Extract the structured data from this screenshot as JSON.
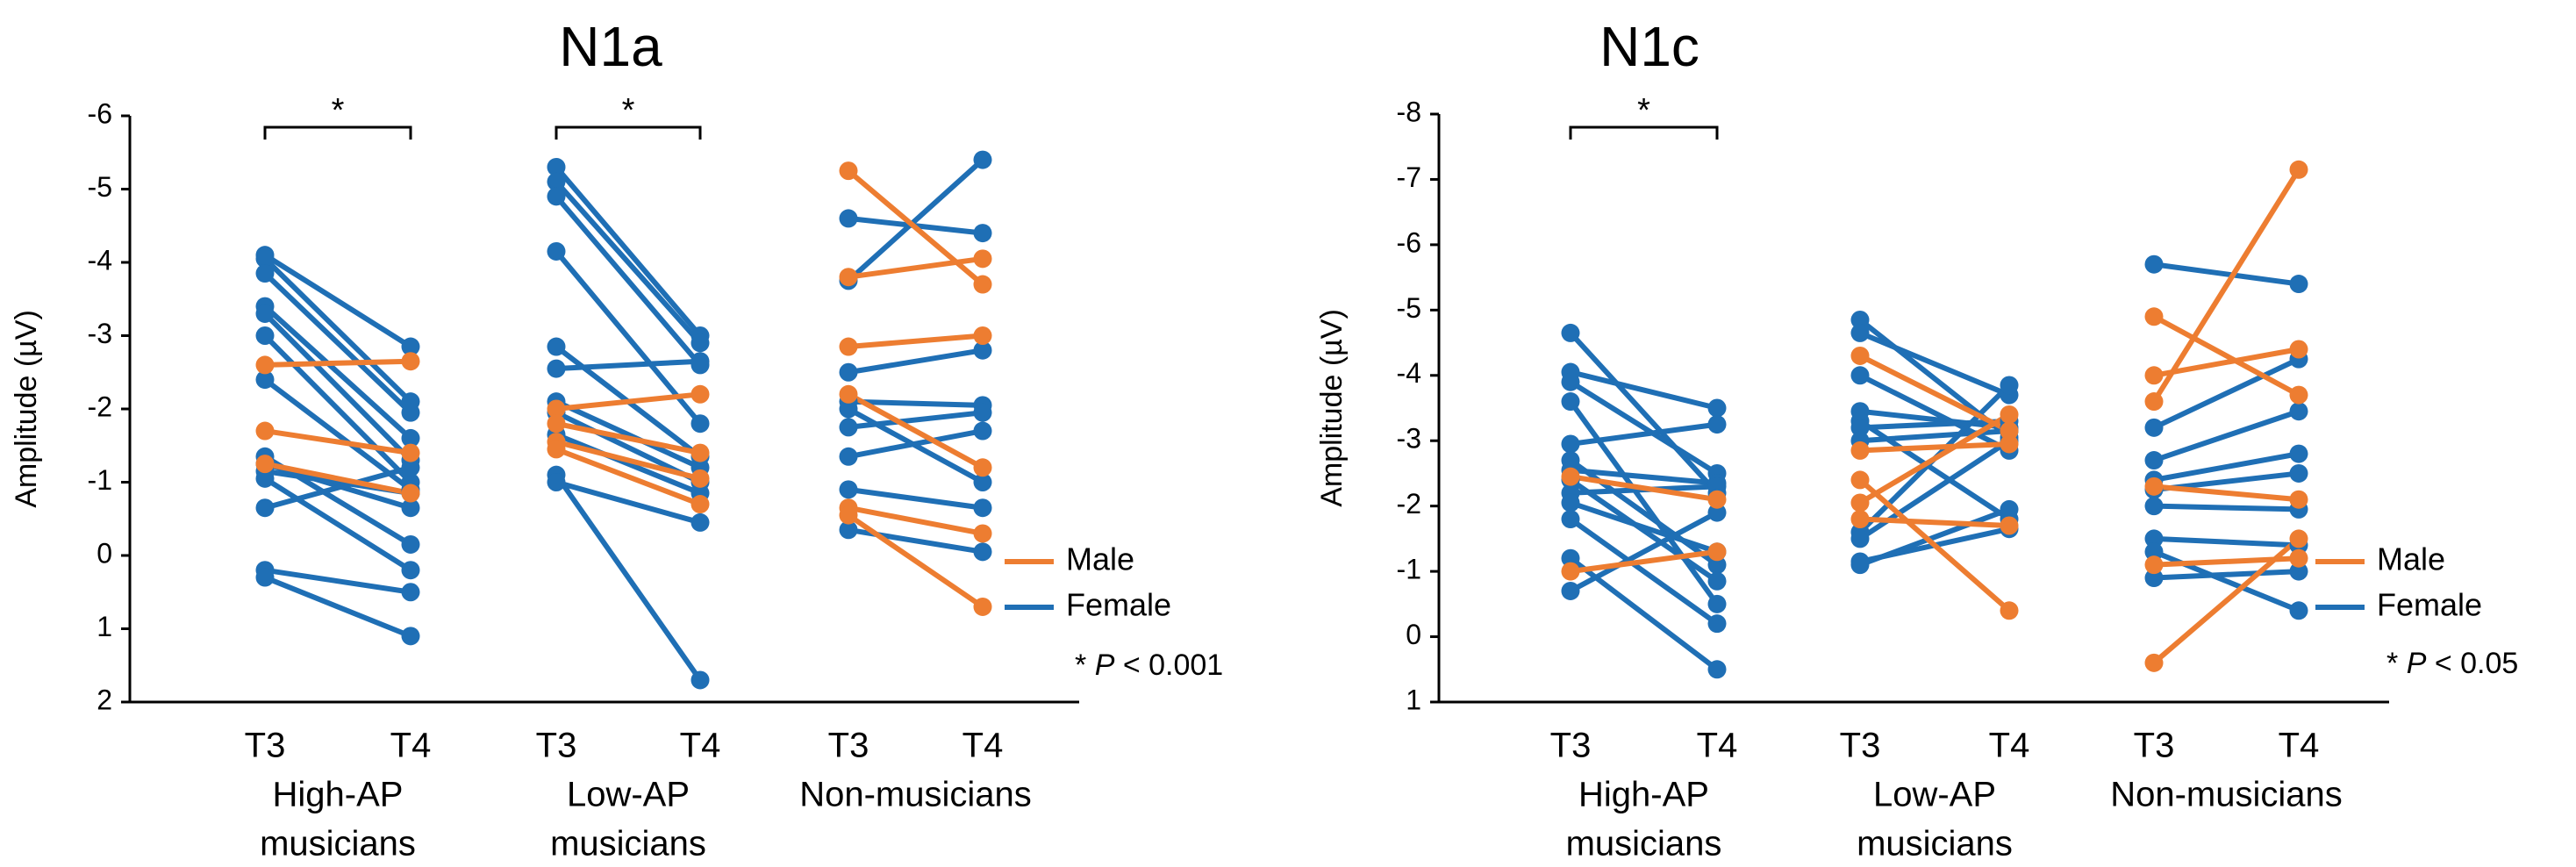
{
  "colors": {
    "male": "#ED7D31",
    "female": "#1F6FB5",
    "axis": "#000000"
  },
  "chart_data": [
    {
      "type": "line",
      "title": "N1a",
      "ylabel": "Amplitude (µV)",
      "ylim": [
        2,
        -6
      ],
      "yticks": [
        "-6",
        "-5",
        "-4",
        "-3",
        "-2",
        "-1",
        "0",
        "1",
        "2"
      ],
      "timepoints": [
        "T3",
        "T4"
      ],
      "groups": [
        {
          "name_line1": "High-AP",
          "name_line2": "musicians",
          "pairs": [
            {
              "sex": "female",
              "T3": -4.1,
              "T4": -2.85
            },
            {
              "sex": "female",
              "T3": -4.05,
              "T4": -2.1
            },
            {
              "sex": "female",
              "T3": -3.85,
              "T4": -1.95
            },
            {
              "sex": "female",
              "T3": -3.4,
              "T4": -1.6
            },
            {
              "sex": "female",
              "T3": -3.3,
              "T4": -1.3
            },
            {
              "sex": "female",
              "T3": -3.0,
              "T4": -1.0
            },
            {
              "sex": "female",
              "T3": -2.4,
              "T4": -0.9
            },
            {
              "sex": "female",
              "T3": -1.35,
              "T4": -0.15
            },
            {
              "sex": "female",
              "T3": -1.25,
              "T4": -0.65
            },
            {
              "sex": "female",
              "T3": -1.15,
              "T4": -0.85
            },
            {
              "sex": "female",
              "T3": -1.05,
              "T4": 0.2
            },
            {
              "sex": "female",
              "T3": -0.65,
              "T4": -1.2
            },
            {
              "sex": "female",
              "T3": 0.2,
              "T4": 0.5
            },
            {
              "sex": "female",
              "T3": 0.3,
              "T4": 1.1
            },
            {
              "sex": "male",
              "T3": -2.6,
              "T4": -2.65
            },
            {
              "sex": "male",
              "T3": -1.7,
              "T4": -1.4
            },
            {
              "sex": "male",
              "T3": -1.25,
              "T4": -0.85
            }
          ]
        },
        {
          "name_line1": "Low-AP",
          "name_line2": "musicians",
          "pairs": [
            {
              "sex": "female",
              "T3": -5.3,
              "T4": -3.0
            },
            {
              "sex": "female",
              "T3": -5.1,
              "T4": -2.9
            },
            {
              "sex": "female",
              "T3": -4.9,
              "T4": -2.6
            },
            {
              "sex": "female",
              "T3": -4.15,
              "T4": -1.8
            },
            {
              "sex": "female",
              "T3": -2.85,
              "T4": -1.35
            },
            {
              "sex": "female",
              "T3": -2.55,
              "T4": -2.65
            },
            {
              "sex": "female",
              "T3": -2.1,
              "T4": -1.2
            },
            {
              "sex": "female",
              "T3": -1.95,
              "T4": -1.0
            },
            {
              "sex": "female",
              "T3": -1.65,
              "T4": -0.85
            },
            {
              "sex": "female",
              "T3": -1.1,
              "T4": 1.7
            },
            {
              "sex": "female",
              "T3": -1.0,
              "T4": -0.45
            },
            {
              "sex": "male",
              "T3": -2.0,
              "T4": -2.2
            },
            {
              "sex": "male",
              "T3": -1.8,
              "T4": -1.4
            },
            {
              "sex": "male",
              "T3": -1.55,
              "T4": -1.05
            },
            {
              "sex": "male",
              "T3": -1.45,
              "T4": -0.7
            }
          ]
        },
        {
          "name_line1": "Non-musicians",
          "name_line2": "",
          "pairs": [
            {
              "sex": "female",
              "T3": -4.6,
              "T4": -4.4
            },
            {
              "sex": "female",
              "T3": -3.75,
              "T4": -5.4
            },
            {
              "sex": "female",
              "T3": -2.5,
              "T4": -2.8
            },
            {
              "sex": "female",
              "T3": -2.1,
              "T4": -2.05
            },
            {
              "sex": "female",
              "T3": -2.0,
              "T4": -1.0
            },
            {
              "sex": "female",
              "T3": -1.75,
              "T4": -1.95
            },
            {
              "sex": "female",
              "T3": -1.35,
              "T4": -1.7
            },
            {
              "sex": "female",
              "T3": -0.9,
              "T4": -0.65
            },
            {
              "sex": "female",
              "T3": -0.35,
              "T4": -0.05
            },
            {
              "sex": "male",
              "T3": -5.25,
              "T4": -3.7
            },
            {
              "sex": "male",
              "T3": -3.8,
              "T4": -4.05
            },
            {
              "sex": "male",
              "T3": -2.85,
              "T4": -3.0
            },
            {
              "sex": "male",
              "T3": -2.2,
              "T4": -1.2
            },
            {
              "sex": "male",
              "T3": -0.65,
              "T4": -0.3
            },
            {
              "sex": "male",
              "T3": -0.55,
              "T4": 0.7
            }
          ]
        }
      ],
      "significance": [
        {
          "group": 0,
          "label": "*"
        },
        {
          "group": 1,
          "label": "*"
        }
      ],
      "legend": {
        "male": "Male",
        "female": "Female"
      },
      "note_star": "* ",
      "note_p": "P",
      "note_value": " < 0.001"
    },
    {
      "type": "line",
      "title": "N1c",
      "ylabel": "Amplitude (µV)",
      "ylim": [
        1,
        -8
      ],
      "yticks": [
        "-8",
        "-7",
        "-6",
        "-5",
        "-4",
        "-3",
        "-2",
        "-1",
        "0",
        "1"
      ],
      "timepoints": [
        "T3",
        "T4"
      ],
      "groups": [
        {
          "name_line1": "High-AP",
          "name_line2": "musicians",
          "pairs": [
            {
              "sex": "female",
              "T3": -4.65,
              "T4": -2.2
            },
            {
              "sex": "female",
              "T3": -4.05,
              "T4": -3.5
            },
            {
              "sex": "female",
              "T3": -3.9,
              "T4": -2.5
            },
            {
              "sex": "female",
              "T3": -3.6,
              "T4": -0.5
            },
            {
              "sex": "female",
              "T3": -2.95,
              "T4": -3.25
            },
            {
              "sex": "female",
              "T3": -2.7,
              "T4": -1.1
            },
            {
              "sex": "female",
              "T3": -2.55,
              "T4": -2.35
            },
            {
              "sex": "female",
              "T3": -2.4,
              "T4": -0.85
            },
            {
              "sex": "female",
              "T3": -2.2,
              "T4": -2.3
            },
            {
              "sex": "female",
              "T3": -2.05,
              "T4": -1.3
            },
            {
              "sex": "female",
              "T3": -1.8,
              "T4": -0.2
            },
            {
              "sex": "female",
              "T3": -1.2,
              "T4": 0.5
            },
            {
              "sex": "female",
              "T3": -0.7,
              "T4": -1.9
            },
            {
              "sex": "male",
              "T3": -2.45,
              "T4": -2.1
            },
            {
              "sex": "male",
              "T3": -1.0,
              "T4": -1.3
            }
          ]
        },
        {
          "name_line1": "Low-AP",
          "name_line2": "musicians",
          "pairs": [
            {
              "sex": "female",
              "T3": -4.85,
              "T4": -3.05
            },
            {
              "sex": "female",
              "T3": -4.65,
              "T4": -3.7
            },
            {
              "sex": "female",
              "T3": -4.0,
              "T4": -2.85
            },
            {
              "sex": "female",
              "T3": -3.45,
              "T4": -3.2
            },
            {
              "sex": "female",
              "T3": -3.3,
              "T4": -1.8
            },
            {
              "sex": "female",
              "T3": -3.2,
              "T4": -3.3
            },
            {
              "sex": "female",
              "T3": -3.0,
              "T4": -3.15
            },
            {
              "sex": "female",
              "T3": -1.6,
              "T4": -3.85
            },
            {
              "sex": "female",
              "T3": -1.5,
              "T4": -3.0
            },
            {
              "sex": "female",
              "T3": -1.15,
              "T4": -1.65
            },
            {
              "sex": "female",
              "T3": -1.1,
              "T4": -1.95
            },
            {
              "sex": "male",
              "T3": -4.3,
              "T4": -3.15
            },
            {
              "sex": "male",
              "T3": -2.85,
              "T4": -2.95
            },
            {
              "sex": "male",
              "T3": -2.4,
              "T4": -0.4
            },
            {
              "sex": "male",
              "T3": -2.05,
              "T4": -3.4
            },
            {
              "sex": "male",
              "T3": -1.8,
              "T4": -1.7
            }
          ]
        },
        {
          "name_line1": "Non-musicians",
          "name_line2": "",
          "pairs": [
            {
              "sex": "female",
              "T3": -5.7,
              "T4": -5.4
            },
            {
              "sex": "female",
              "T3": -3.2,
              "T4": -4.25
            },
            {
              "sex": "female",
              "T3": -2.7,
              "T4": -3.45
            },
            {
              "sex": "female",
              "T3": -2.4,
              "T4": -2.8
            },
            {
              "sex": "female",
              "T3": -2.25,
              "T4": -2.5
            },
            {
              "sex": "female",
              "T3": -2.0,
              "T4": -1.95
            },
            {
              "sex": "female",
              "T3": -1.5,
              "T4": -1.4
            },
            {
              "sex": "female",
              "T3": -1.3,
              "T4": -0.4
            },
            {
              "sex": "female",
              "T3": -0.9,
              "T4": -1.0
            },
            {
              "sex": "male",
              "T3": -4.9,
              "T4": -3.7
            },
            {
              "sex": "male",
              "T3": -4.0,
              "T4": -4.4
            },
            {
              "sex": "male",
              "T3": -3.6,
              "T4": -7.15
            },
            {
              "sex": "male",
              "T3": -2.3,
              "T4": -2.1
            },
            {
              "sex": "male",
              "T3": -1.1,
              "T4": -1.2
            },
            {
              "sex": "male",
              "T3": 0.4,
              "T4": -1.5
            }
          ]
        }
      ],
      "significance": [
        {
          "group": 0,
          "label": "*"
        }
      ],
      "legend": {
        "male": "Male",
        "female": "Female"
      },
      "note_star": "* ",
      "note_p": "P",
      "note_value": " < 0.05"
    }
  ]
}
